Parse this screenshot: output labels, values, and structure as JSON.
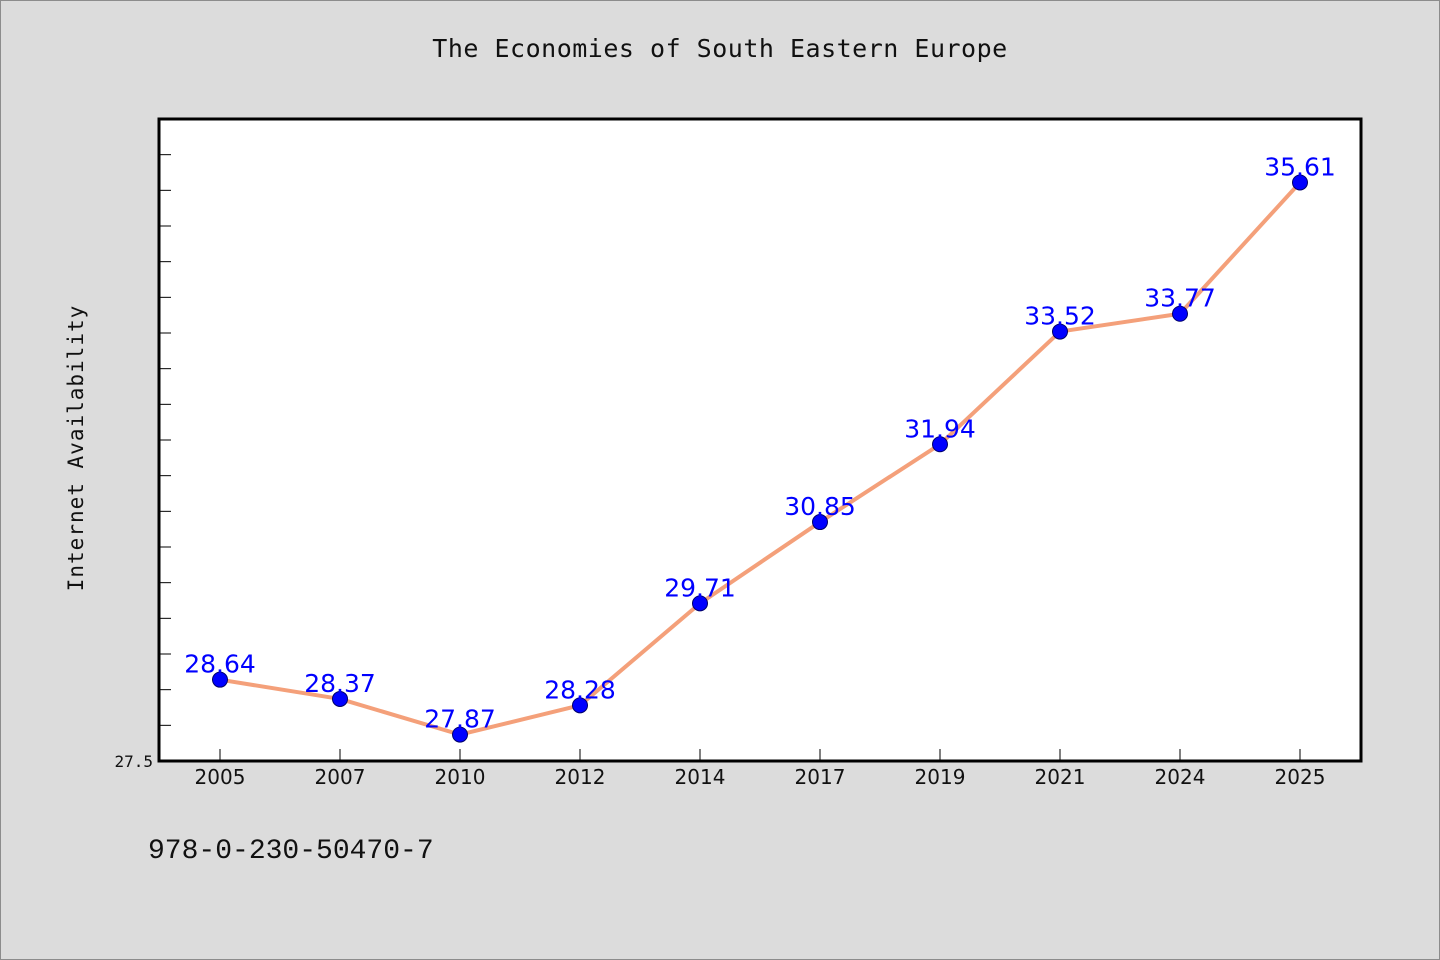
{
  "colors": {
    "background": "#dcdcdc",
    "plot_background": "#ffffff",
    "line": "#f4a07a",
    "marker": "#0000ff",
    "data_label": "#0000ff"
  },
  "footer": {
    "code": "978-0-230-50470-7"
  },
  "chart_data": {
    "type": "line",
    "title": "The Economies of South Eastern Europe",
    "xlabel": "",
    "ylabel": "Internet Availability",
    "categories": [
      "2005",
      "2007",
      "2010",
      "2012",
      "2014",
      "2017",
      "2019",
      "2021",
      "2024",
      "2025"
    ],
    "series": [
      {
        "values": [
          28.64,
          28.37,
          27.87,
          28.28,
          29.71,
          30.85,
          31.94,
          33.52,
          33.77,
          35.61
        ]
      }
    ],
    "data_labels": [
      "28.64",
      "28.37",
      "27.87",
      "28.28",
      "29.71",
      "30.85",
      "31.94",
      "33.52",
      "33.77",
      "35.61"
    ],
    "ylim": [
      27.5,
      36.5
    ],
    "y_ticks_labeled": [
      "27.5"
    ],
    "y_minor_tick_step": 0.5,
    "grid": false,
    "legend": "none"
  }
}
